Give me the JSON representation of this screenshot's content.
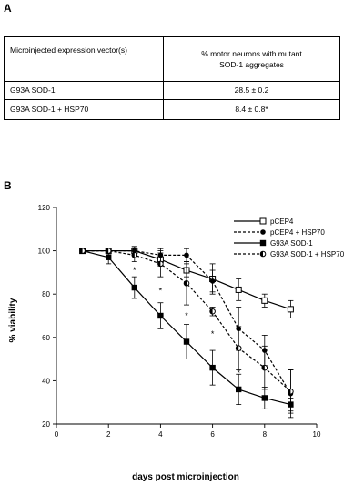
{
  "panel_a": {
    "label": "A",
    "table": {
      "headers": [
        "Microinjected expression vector(s)",
        "% motor neurons with  mutant",
        "SOD-1 aggregates"
      ],
      "rows": [
        [
          "G93A SOD-1",
          "28.5 ± 0.2"
        ],
        [
          "G93A SOD-1 + HSP70",
          "8.4 ± 0.8*"
        ]
      ]
    }
  },
  "panel_b": {
    "label": "B"
  },
  "chart_data": {
    "type": "line",
    "xlabel": "days  post  microinjection",
    "ylabel": "%  viability",
    "xlim": [
      0,
      10
    ],
    "ylim": [
      20,
      120
    ],
    "xticks": [
      0,
      2,
      4,
      6,
      8,
      10
    ],
    "yticks": [
      20,
      40,
      60,
      80,
      100,
      120
    ],
    "legend_position": "top-right",
    "significance_marker": "*",
    "significance_x": [
      3,
      4,
      5,
      6,
      7
    ],
    "series": [
      {
        "name": "pCEP4",
        "marker": "open-square",
        "dashed": false,
        "x": [
          1,
          2,
          3,
          4,
          5,
          6,
          7,
          8,
          9
        ],
        "y": [
          100,
          100,
          100,
          96,
          91,
          87,
          82,
          77,
          73
        ],
        "err": [
          0,
          0,
          2,
          3,
          3,
          7,
          5,
          3,
          4
        ]
      },
      {
        "name": "pCEP4 + HSP70",
        "marker": "filled-circle",
        "dashed": true,
        "x": [
          1,
          2,
          3,
          4,
          5,
          6,
          7,
          8,
          9
        ],
        "y": [
          100,
          100,
          100,
          98,
          98,
          86,
          64,
          54,
          34
        ],
        "err": [
          0,
          0,
          2,
          3,
          3,
          5,
          10,
          7,
          11
        ]
      },
      {
        "name": "G93A SOD-1",
        "marker": "filled-square",
        "dashed": false,
        "x": [
          1,
          2,
          3,
          4,
          5,
          6,
          7,
          8,
          9
        ],
        "y": [
          100,
          97,
          83,
          70,
          58,
          46,
          36,
          32,
          29
        ],
        "err": [
          0,
          3,
          5,
          6,
          8,
          8,
          7,
          5,
          3
        ]
      },
      {
        "name": "G93A SOD-1 + HSP70",
        "marker": "half-filled-circle",
        "dashed": true,
        "x": [
          1,
          2,
          3,
          4,
          5,
          6,
          7,
          8,
          9
        ],
        "y": [
          100,
          100,
          98,
          94,
          85,
          72,
          55,
          46,
          35
        ],
        "err": [
          0,
          0,
          3,
          6,
          10,
          2,
          10,
          10,
          10
        ]
      }
    ]
  }
}
